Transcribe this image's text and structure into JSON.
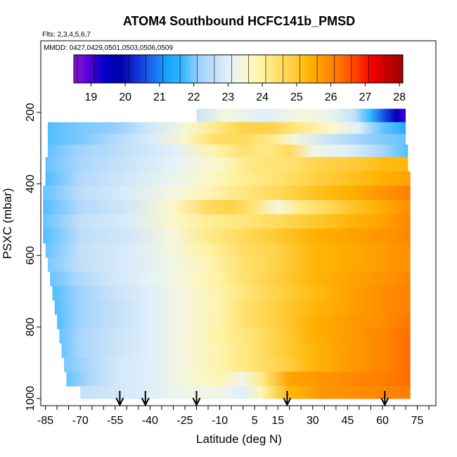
{
  "chart_data": {
    "type": "heatmap",
    "title": "ATOM4 Southbound HCFC141b_PMSD",
    "flights_label": "Flts: 2,3,4,5,6,7",
    "dates_label": "MMDD: 0427,0429,0501,0503,0506,0509",
    "xlabel": "Latitude (deg N)",
    "ylabel": "PSXC (mbar)",
    "xlim": [
      -87,
      83
    ],
    "ylim": [
      1020,
      0
    ],
    "x_ticks": [
      -85,
      -70,
      -55,
      -40,
      -25,
      -10,
      5,
      15,
      30,
      45,
      60,
      75
    ],
    "y_ticks": [
      200,
      400,
      600,
      800,
      1000
    ],
    "colorbar": {
      "min": 18.5,
      "max": 28.1,
      "ticks": [
        19,
        20,
        21,
        22,
        23,
        24,
        25,
        26,
        27,
        28
      ],
      "colors": [
        "#8a1ad6",
        "#5200d8",
        "#0000c8",
        "#0000a6",
        "#1030d8",
        "#1c68f0",
        "#14a8ff",
        "#3ab8ff",
        "#9fd2ff",
        "#c4e0f8",
        "#e4f2fb",
        "#fbf8d0",
        "#fff3a3",
        "#ffe06a",
        "#ffce40",
        "#ffb400",
        "#ff9400",
        "#ff7000",
        "#ff4000",
        "#f20000",
        "#c80000",
        "#9e0000"
      ]
    },
    "profile_arrows_lat": [
      -53,
      -42,
      -20,
      19,
      61
    ],
    "layers": [
      {
        "p": 210,
        "lat": [
          -20,
          70
        ],
        "stops": [
          [
            -20,
            22.7
          ],
          [
            -8,
            23.4
          ],
          [
            10,
            23.0
          ],
          [
            25,
            23.4
          ],
          [
            38,
            23.2
          ],
          [
            48,
            22.6
          ],
          [
            55,
            21.6
          ],
          [
            62,
            20.4
          ],
          [
            66,
            19.6
          ],
          [
            70,
            19.0
          ]
        ]
      },
      {
        "p": 245,
        "lat": [
          -84,
          70
        ],
        "stops": [
          [
            -84,
            21.8
          ],
          [
            -70,
            22.0
          ],
          [
            -55,
            22.1
          ],
          [
            -40,
            22.8
          ],
          [
            -25,
            23.4
          ],
          [
            -12,
            24.2
          ],
          [
            0,
            24.8
          ],
          [
            12,
            24.8
          ],
          [
            25,
            24.2
          ],
          [
            38,
            23.6
          ],
          [
            50,
            23.0
          ],
          [
            60,
            21.9
          ],
          [
            70,
            21.4
          ]
        ]
      },
      {
        "p": 275,
        "lat": [
          -84,
          70
        ],
        "stops": [
          [
            -84,
            21.8
          ],
          [
            -70,
            22.0
          ],
          [
            -55,
            22.4
          ],
          [
            -40,
            22.9
          ],
          [
            -25,
            23.6
          ],
          [
            -12,
            24.5
          ],
          [
            0,
            24.6
          ],
          [
            12,
            24.2
          ],
          [
            22,
            23.4
          ],
          [
            40,
            22.6
          ],
          [
            55,
            22.1
          ],
          [
            70,
            21.9
          ]
        ]
      },
      {
        "p": 305,
        "lat": [
          -84,
          71
        ],
        "stops": [
          [
            -84,
            21.9
          ],
          [
            -70,
            22.2
          ],
          [
            -50,
            22.6
          ],
          [
            -30,
            23.0
          ],
          [
            -12,
            23.9
          ],
          [
            0,
            24.4
          ],
          [
            10,
            24.2
          ],
          [
            20,
            24.6
          ],
          [
            30,
            23.3
          ],
          [
            45,
            23.0
          ],
          [
            60,
            22.3
          ],
          [
            71,
            21.8
          ]
        ]
      },
      {
        "p": 345,
        "lat": [
          -85,
          71
        ],
        "stops": [
          [
            -85,
            21.9
          ],
          [
            -70,
            22.3
          ],
          [
            -50,
            22.7
          ],
          [
            -30,
            23.1
          ],
          [
            -10,
            23.6
          ],
          [
            5,
            24.3
          ],
          [
            20,
            24.4
          ],
          [
            35,
            24.8
          ],
          [
            50,
            25.0
          ],
          [
            60,
            25.2
          ],
          [
            71,
            25.3
          ]
        ]
      },
      {
        "p": 385,
        "lat": [
          -85,
          72
        ],
        "stops": [
          [
            -85,
            21.8
          ],
          [
            -70,
            22.4
          ],
          [
            -50,
            22.8
          ],
          [
            -30,
            23.2
          ],
          [
            -15,
            23.6
          ],
          [
            0,
            24.1
          ],
          [
            15,
            24.4
          ],
          [
            30,
            24.8
          ],
          [
            45,
            25.1
          ],
          [
            60,
            25.4
          ],
          [
            72,
            25.6
          ]
        ]
      },
      {
        "p": 425,
        "lat": [
          -86,
          72
        ],
        "stops": [
          [
            -86,
            21.9
          ],
          [
            -70,
            22.5
          ],
          [
            -50,
            22.9
          ],
          [
            -30,
            23.4
          ],
          [
            -15,
            23.8
          ],
          [
            0,
            24.3
          ],
          [
            15,
            24.6
          ],
          [
            30,
            25.1
          ],
          [
            45,
            25.4
          ],
          [
            60,
            25.8
          ],
          [
            72,
            26.1
          ]
        ]
      },
      {
        "p": 465,
        "lat": [
          -86,
          72
        ],
        "stops": [
          [
            -86,
            21.8
          ],
          [
            -70,
            22.4
          ],
          [
            -50,
            22.8
          ],
          [
            -30,
            23.6
          ],
          [
            -15,
            24.6
          ],
          [
            -5,
            24.8
          ],
          [
            5,
            24.3
          ],
          [
            15,
            23.4
          ],
          [
            25,
            24.2
          ],
          [
            40,
            24.8
          ],
          [
            55,
            25.3
          ],
          [
            72,
            25.9
          ]
        ]
      },
      {
        "p": 505,
        "lat": [
          -86,
          72
        ],
        "stops": [
          [
            -86,
            21.9
          ],
          [
            -70,
            22.6
          ],
          [
            -50,
            22.9
          ],
          [
            -30,
            23.6
          ],
          [
            -15,
            24.1
          ],
          [
            0,
            24.3
          ],
          [
            15,
            24.6
          ],
          [
            30,
            25.0
          ],
          [
            45,
            25.3
          ],
          [
            60,
            25.6
          ],
          [
            72,
            26.0
          ]
        ]
      },
      {
        "p": 545,
        "lat": [
          -86,
          72
        ],
        "stops": [
          [
            -86,
            21.8
          ],
          [
            -70,
            22.5
          ],
          [
            -50,
            22.8
          ],
          [
            -30,
            23.4
          ],
          [
            -15,
            24.2
          ],
          [
            0,
            24.6
          ],
          [
            15,
            25.0
          ],
          [
            30,
            25.4
          ],
          [
            45,
            25.6
          ],
          [
            60,
            25.8
          ],
          [
            72,
            26.0
          ]
        ]
      },
      {
        "p": 585,
        "lat": [
          -85,
          72
        ],
        "stops": [
          [
            -85,
            21.9
          ],
          [
            -70,
            22.6
          ],
          [
            -50,
            22.9
          ],
          [
            -30,
            23.4
          ],
          [
            -15,
            24.0
          ],
          [
            0,
            24.5
          ],
          [
            15,
            24.8
          ],
          [
            30,
            25.3
          ],
          [
            45,
            25.5
          ],
          [
            60,
            25.7
          ],
          [
            72,
            25.9
          ]
        ]
      },
      {
        "p": 625,
        "lat": [
          -84,
          72
        ],
        "stops": [
          [
            -84,
            22.0
          ],
          [
            -70,
            22.6
          ],
          [
            -50,
            22.9
          ],
          [
            -30,
            23.3
          ],
          [
            -15,
            23.8
          ],
          [
            0,
            24.4
          ],
          [
            15,
            24.8
          ],
          [
            30,
            25.3
          ],
          [
            45,
            25.5
          ],
          [
            60,
            25.7
          ],
          [
            72,
            25.9
          ]
        ]
      },
      {
        "p": 665,
        "lat": [
          -83,
          72
        ],
        "stops": [
          [
            -83,
            21.9
          ],
          [
            -70,
            22.4
          ],
          [
            -55,
            22.8
          ],
          [
            -40,
            23.1
          ],
          [
            -25,
            23.5
          ],
          [
            -10,
            24.0
          ],
          [
            0,
            24.4
          ],
          [
            15,
            24.9
          ],
          [
            30,
            25.3
          ],
          [
            45,
            25.6
          ],
          [
            60,
            25.8
          ],
          [
            72,
            26.0
          ]
        ]
      },
      {
        "p": 705,
        "lat": [
          -82,
          72
        ],
        "stops": [
          [
            -82,
            21.8
          ],
          [
            -70,
            22.2
          ],
          [
            -55,
            22.7
          ],
          [
            -40,
            23.0
          ],
          [
            -25,
            23.4
          ],
          [
            -10,
            23.9
          ],
          [
            0,
            24.3
          ],
          [
            15,
            24.8
          ],
          [
            30,
            25.2
          ],
          [
            45,
            25.6
          ],
          [
            60,
            25.9
          ],
          [
            72,
            26.1
          ]
        ]
      },
      {
        "p": 745,
        "lat": [
          -81,
          72
        ],
        "stops": [
          [
            -81,
            21.8
          ],
          [
            -70,
            22.2
          ],
          [
            -55,
            22.6
          ],
          [
            -40,
            23.0
          ],
          [
            -25,
            23.4
          ],
          [
            -10,
            23.9
          ],
          [
            0,
            24.4
          ],
          [
            15,
            24.9
          ],
          [
            30,
            25.3
          ],
          [
            45,
            25.6
          ],
          [
            60,
            25.9
          ],
          [
            72,
            26.1
          ]
        ]
      },
      {
        "p": 785,
        "lat": [
          -80,
          72
        ],
        "stops": [
          [
            -80,
            21.8
          ],
          [
            -70,
            22.2
          ],
          [
            -55,
            22.6
          ],
          [
            -40,
            23.0
          ],
          [
            -25,
            23.4
          ],
          [
            -10,
            23.9
          ],
          [
            0,
            24.4
          ],
          [
            15,
            24.9
          ],
          [
            30,
            25.4
          ],
          [
            45,
            25.7
          ],
          [
            60,
            25.9
          ],
          [
            72,
            26.2
          ]
        ]
      },
      {
        "p": 825,
        "lat": [
          -79,
          72
        ],
        "stops": [
          [
            -79,
            21.9
          ],
          [
            -70,
            22.3
          ],
          [
            -55,
            22.7
          ],
          [
            -40,
            23.0
          ],
          [
            -25,
            23.4
          ],
          [
            -10,
            24.0
          ],
          [
            5,
            24.4
          ],
          [
            15,
            24.8
          ],
          [
            30,
            25.4
          ],
          [
            45,
            25.7
          ],
          [
            60,
            26.0
          ],
          [
            72,
            26.3
          ]
        ]
      },
      {
        "p": 865,
        "lat": [
          -78,
          72
        ],
        "stops": [
          [
            -78,
            21.9
          ],
          [
            -70,
            22.3
          ],
          [
            -55,
            22.7
          ],
          [
            -40,
            23.0
          ],
          [
            -25,
            23.4
          ],
          [
            -10,
            23.9
          ],
          [
            5,
            24.4
          ],
          [
            20,
            25.0
          ],
          [
            30,
            25.3
          ],
          [
            45,
            25.7
          ],
          [
            60,
            26.0
          ],
          [
            72,
            26.3
          ]
        ]
      },
      {
        "p": 905,
        "lat": [
          -77,
          72
        ],
        "stops": [
          [
            -77,
            22.0
          ],
          [
            -65,
            22.4
          ],
          [
            -55,
            22.8
          ],
          [
            -40,
            23.0
          ],
          [
            -25,
            23.4
          ],
          [
            -10,
            23.9
          ],
          [
            5,
            24.4
          ],
          [
            20,
            24.9
          ],
          [
            30,
            25.3
          ],
          [
            45,
            25.7
          ],
          [
            60,
            26.0
          ],
          [
            72,
            26.3
          ]
        ]
      },
      {
        "p": 945,
        "lat": [
          -76,
          72
        ],
        "stops": [
          [
            -76,
            21.9
          ],
          [
            -65,
            22.4
          ],
          [
            -55,
            22.8
          ],
          [
            -40,
            23.0
          ],
          [
            -25,
            23.4
          ],
          [
            -10,
            23.8
          ],
          [
            0,
            23.3
          ],
          [
            8,
            24.2
          ],
          [
            20,
            25.6
          ],
          [
            35,
            25.8
          ],
          [
            50,
            26.0
          ],
          [
            60,
            26.1
          ],
          [
            72,
            26.3
          ]
        ]
      },
      {
        "p": 985,
        "lat": [
          -70,
          72
        ],
        "stops": [
          [
            -70,
            22.6
          ],
          [
            -55,
            22.8
          ],
          [
            -40,
            23.0
          ],
          [
            -25,
            23.3
          ],
          [
            -10,
            23.3
          ],
          [
            0,
            23.0
          ],
          [
            8,
            23.8
          ],
          [
            20,
            25.3
          ],
          [
            35,
            25.8
          ],
          [
            50,
            25.9
          ],
          [
            60,
            26.0
          ],
          [
            72,
            26.1
          ]
        ]
      }
    ]
  }
}
